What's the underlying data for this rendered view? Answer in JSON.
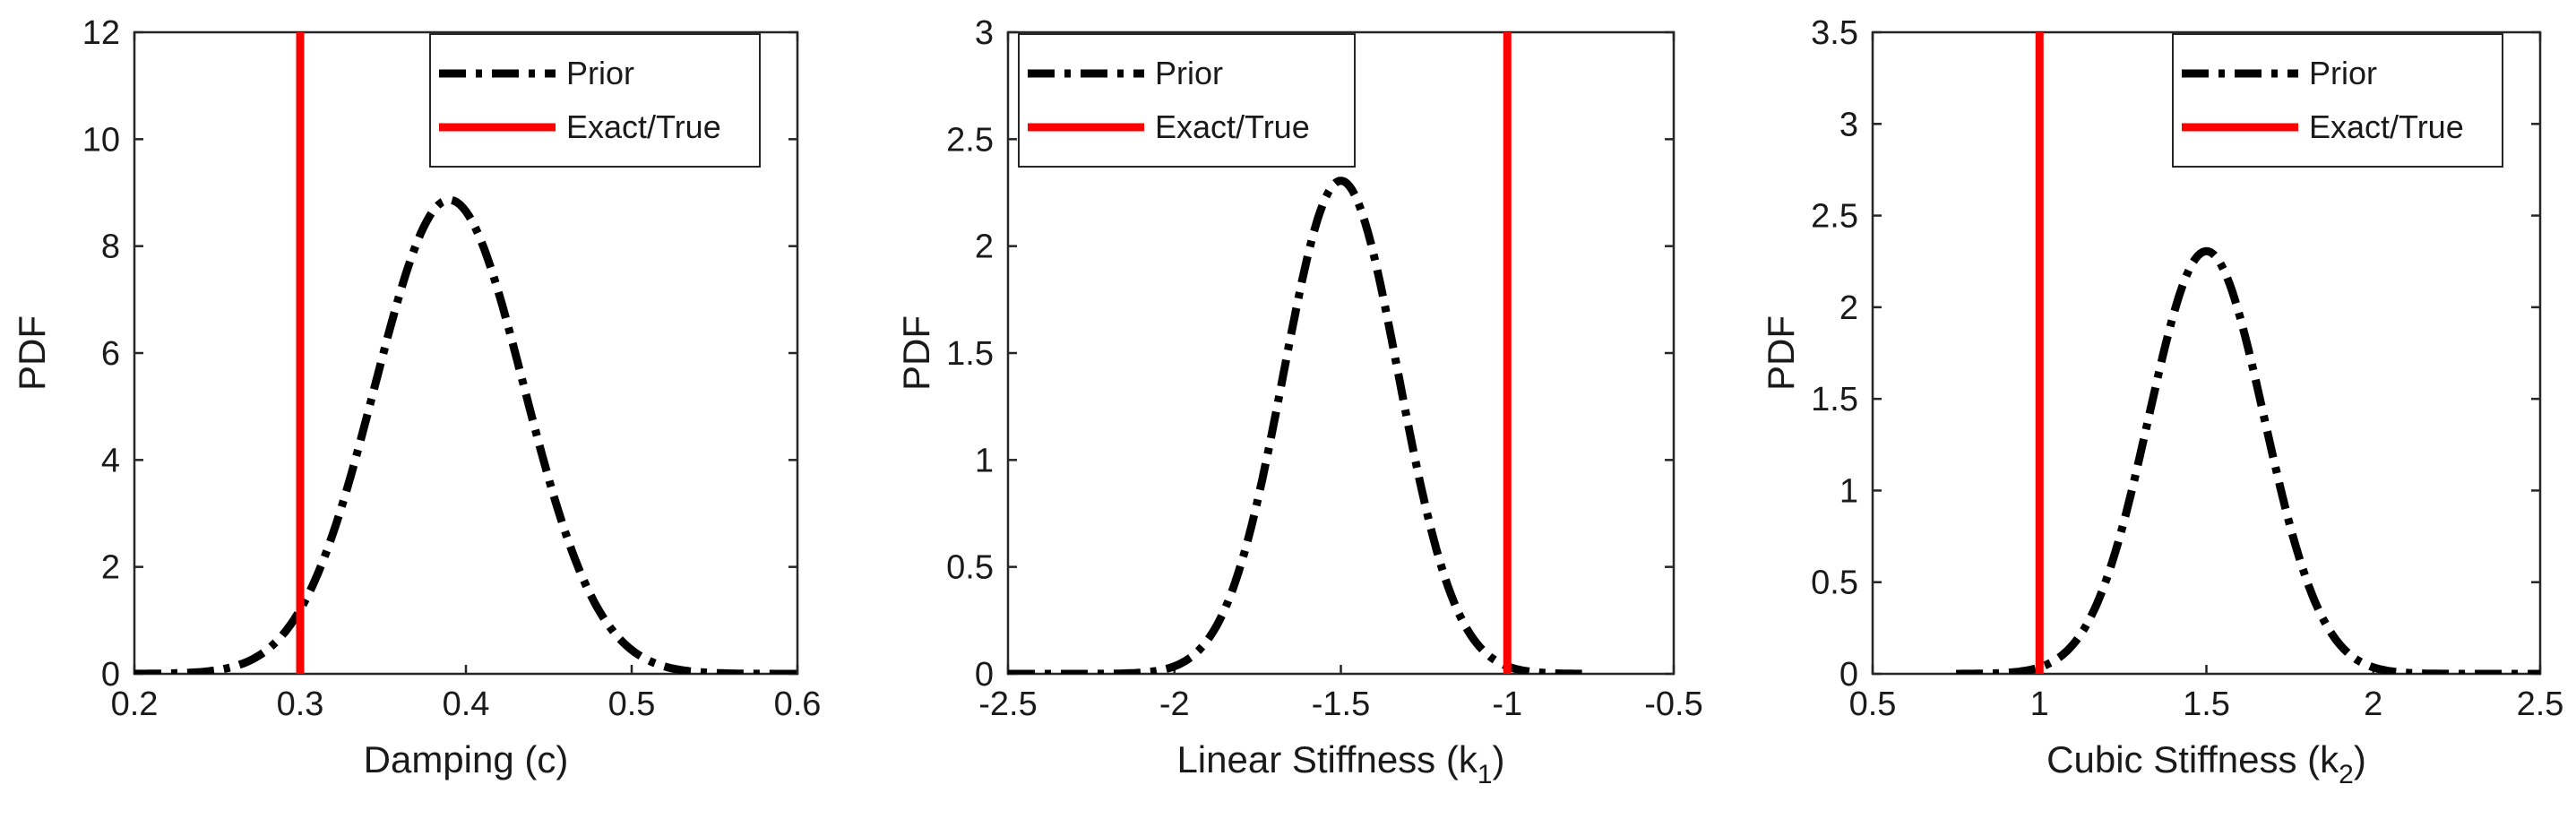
{
  "colors": {
    "prior": "#000000",
    "exact": "#ff0000",
    "axes": "#262626"
  },
  "chart_data": [
    {
      "type": "line",
      "title": "",
      "xlabel": "Damping (c)",
      "xlabel_sub": "",
      "xlabel_tail": "",
      "ylabel": "PDF",
      "xlim": [
        0.2,
        0.6
      ],
      "ylim": [
        0,
        12
      ],
      "xticks": [
        0.2,
        0.3,
        0.4,
        0.5,
        0.6
      ],
      "xtick_labels": [
        "0.2",
        "0.3",
        "0.4",
        "0.5",
        "0.6"
      ],
      "yticks": [
        0,
        2,
        4,
        6,
        8,
        10,
        12
      ],
      "ytick_labels": [
        "0",
        "2",
        "4",
        "6",
        "8",
        "10",
        "12"
      ],
      "legend": [
        "Prior",
        "Exact/True"
      ],
      "legend_position": "top-right",
      "series": [
        {
          "name": "Prior",
          "kind": "normal-pdf",
          "mean": 0.39,
          "std": 0.045,
          "x_range": [
            0.2,
            0.6
          ],
          "peak": 8.87
        },
        {
          "name": "Exact/True",
          "kind": "vline",
          "x": 0.3
        }
      ]
    },
    {
      "type": "line",
      "title": "",
      "xlabel": "Linear Stiffness (k",
      "xlabel_sub": "1",
      "xlabel_tail": ")",
      "ylabel": "PDF",
      "xlim": [
        -2.5,
        -0.5
      ],
      "ylim": [
        0,
        3
      ],
      "xticks": [
        -2.5,
        -2,
        -1.5,
        -1,
        -0.5
      ],
      "xtick_labels": [
        "-2.5",
        "-2",
        "-1.5",
        "-1",
        "-0.5"
      ],
      "yticks": [
        0,
        0.5,
        1,
        1.5,
        2,
        2.5,
        3
      ],
      "ytick_labels": [
        "0",
        "0.5",
        "1",
        "1.5",
        "2",
        "2.5",
        "3"
      ],
      "legend": [
        "Prior",
        "Exact/True"
      ],
      "legend_position": "top-left",
      "series": [
        {
          "name": "Prior",
          "kind": "normal-pdf",
          "mean": -1.5,
          "std": 0.173,
          "x_range": [
            -2.5,
            -0.75
          ],
          "peak": 2.31
        },
        {
          "name": "Exact/True",
          "kind": "vline",
          "x": -1
        }
      ]
    },
    {
      "type": "line",
      "title": "",
      "xlabel": "Cubic Stiffness (k",
      "xlabel_sub": "2",
      "xlabel_tail": ")",
      "ylabel": "PDF",
      "xlim": [
        0.5,
        2.5
      ],
      "ylim": [
        0,
        3.5
      ],
      "xticks": [
        0.5,
        1,
        1.5,
        2,
        2.5
      ],
      "xtick_labels": [
        "0.5",
        "1",
        "1.5",
        "2",
        "2.5"
      ],
      "yticks": [
        0,
        0.5,
        1,
        1.5,
        2,
        2.5,
        3,
        3.5
      ],
      "ytick_labels": [
        "0",
        "0.5",
        "1",
        "1.5",
        "2",
        "2.5",
        "3",
        "3.5"
      ],
      "legend": [
        "Prior",
        "Exact/True"
      ],
      "legend_position": "top-right",
      "series": [
        {
          "name": "Prior",
          "kind": "normal-pdf",
          "mean": 1.5,
          "std": 0.173,
          "x_range": [
            0.75,
            2.5
          ],
          "peak": 2.31
        },
        {
          "name": "Exact/True",
          "kind": "vline",
          "x": 1
        }
      ]
    }
  ]
}
